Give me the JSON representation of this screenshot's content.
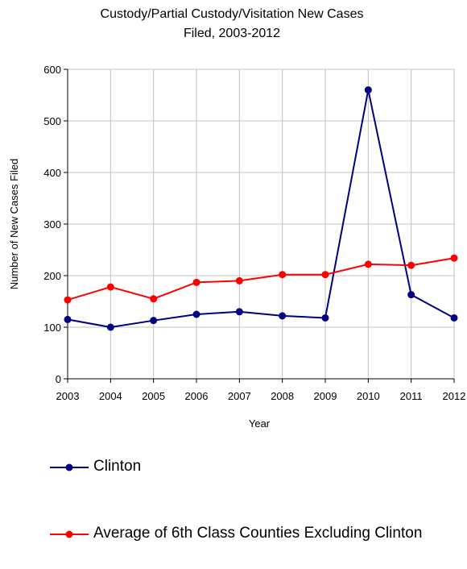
{
  "chart_data": {
    "type": "line",
    "title_lines": [
      "Custody/Partial Custody/Visitation New Cases",
      "Filed, 2003-2012"
    ],
    "xlabel": "Year",
    "ylabel": "Number of New Cases Filed",
    "categories": [
      "2003",
      "2004",
      "2005",
      "2006",
      "2007",
      "2008",
      "2009",
      "2010",
      "2011",
      "2012"
    ],
    "ylim": [
      0,
      600
    ],
    "yticks": [
      "0",
      "100",
      "200",
      "300",
      "400",
      "500",
      "600"
    ],
    "grid": true,
    "legend_position": "bottom",
    "series": [
      {
        "name": "Clinton",
        "color": "#000080",
        "values": [
          115,
          100,
          113,
          125,
          130,
          122,
          118,
          560,
          163,
          118
        ]
      },
      {
        "name": "Average of 6th Class Counties Excluding Clinton",
        "color": "#ff0000",
        "values": [
          153,
          178,
          155,
          187,
          190,
          202,
          202,
          222,
          220,
          234
        ]
      }
    ]
  }
}
